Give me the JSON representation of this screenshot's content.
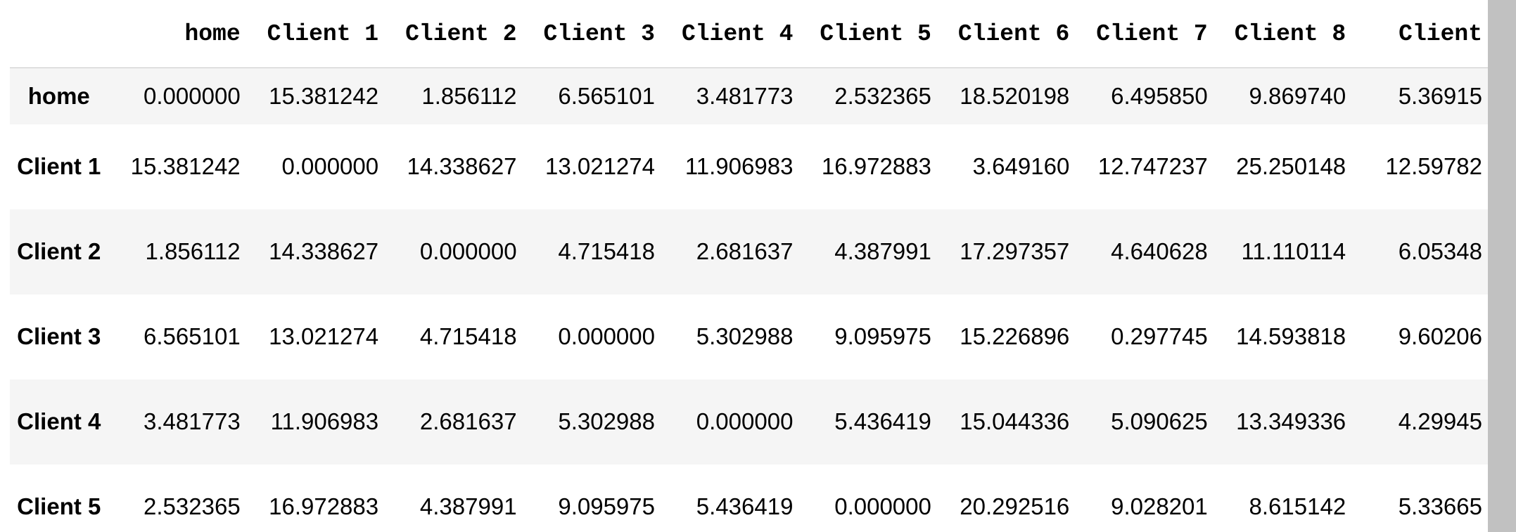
{
  "table": {
    "columns": [
      "home",
      "Client 1",
      "Client 2",
      "Client 3",
      "Client 4",
      "Client 5",
      "Client 6",
      "Client 7",
      "Client 8",
      "Client"
    ],
    "rows": [
      {
        "label": "home",
        "values": [
          "0.000000",
          "15.381242",
          "1.856112",
          "6.565101",
          "3.481773",
          "2.532365",
          "18.520198",
          "6.495850",
          "9.869740",
          "5.36915"
        ]
      },
      {
        "label": "Client 1",
        "values": [
          "15.381242",
          "0.000000",
          "14.338627",
          "13.021274",
          "11.906983",
          "16.972883",
          "3.649160",
          "12.747237",
          "25.250148",
          "12.59782"
        ]
      },
      {
        "label": "Client 2",
        "values": [
          "1.856112",
          "14.338627",
          "0.000000",
          "4.715418",
          "2.681637",
          "4.387991",
          "17.297357",
          "4.640628",
          "11.110114",
          "6.05348"
        ]
      },
      {
        "label": "Client 3",
        "values": [
          "6.565101",
          "13.021274",
          "4.715418",
          "0.000000",
          "5.302988",
          "9.095975",
          "15.226896",
          "0.297745",
          "14.593818",
          "9.60206"
        ]
      },
      {
        "label": "Client 4",
        "values": [
          "3.481773",
          "11.906983",
          "2.681637",
          "5.302988",
          "0.000000",
          "5.436419",
          "15.044336",
          "5.090625",
          "13.349336",
          "4.29945"
        ]
      },
      {
        "label": "Client 5",
        "values": [
          "2.532365",
          "16.972883",
          "4.387991",
          "9.095975",
          "5.436419",
          "0.000000",
          "20.292516",
          "9.028201",
          "8.615142",
          "5.33665"
        ]
      }
    ]
  }
}
